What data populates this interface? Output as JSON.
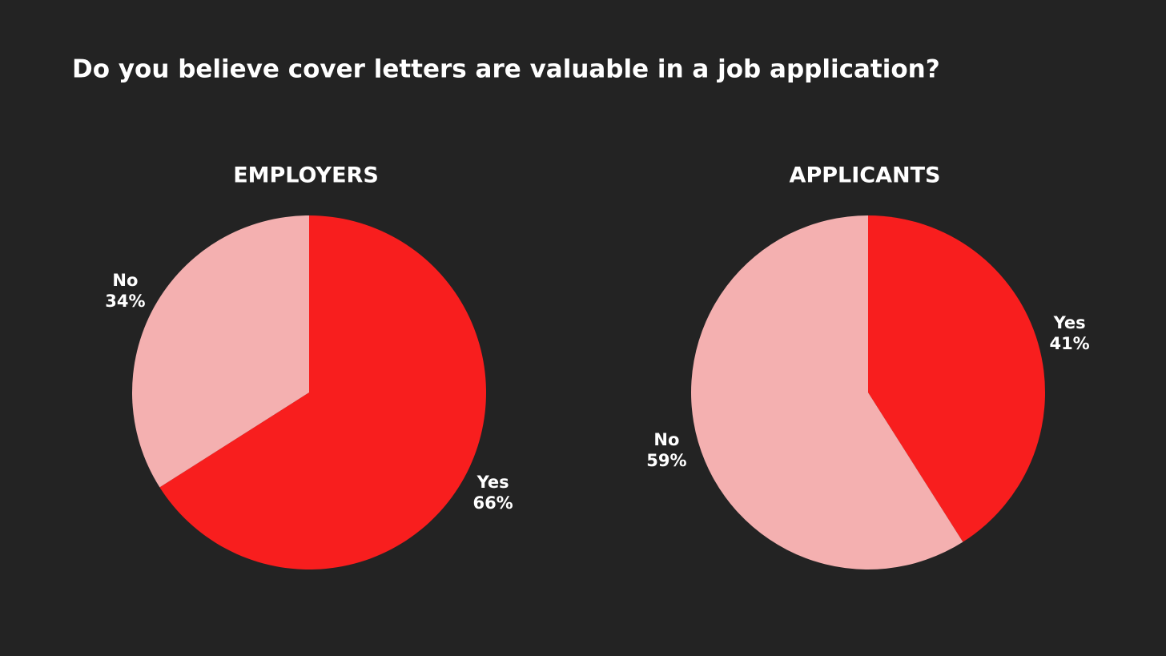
{
  "title": "Do you believe cover letters are valuable in a job application?",
  "chart_data": [
    {
      "type": "pie",
      "title": "EMPLOYERS",
      "categories": [
        "Yes",
        "No"
      ],
      "values": [
        66,
        34
      ],
      "value_labels": [
        "66%",
        "34%"
      ],
      "colors": [
        "#f81e1e",
        "#f4b0b0"
      ]
    },
    {
      "type": "pie",
      "title": "APPLICANTS",
      "categories": [
        "Yes",
        "No"
      ],
      "values": [
        41,
        59
      ],
      "value_labels": [
        "41%",
        "59%"
      ],
      "colors": [
        "#f81e1e",
        "#f4b0b0"
      ]
    }
  ]
}
